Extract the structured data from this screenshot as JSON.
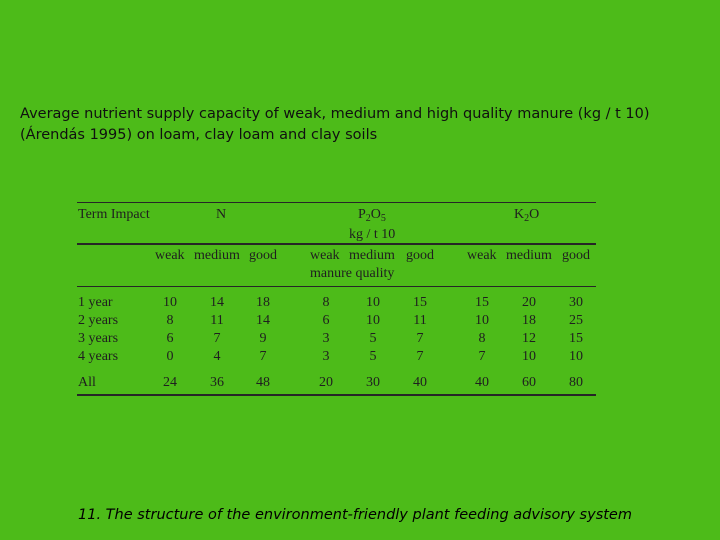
{
  "caption": {
    "line1": "Average nutrient supply capacity of weak, medium and high quality manure (kg / t 10)",
    "line2": "(Árendás 1995) on  loam, clay loam and clay soils"
  },
  "table": {
    "header": {
      "term_impact": "Term Impact",
      "n": "N",
      "p_main": "P",
      "p_sub1": "2",
      "p_o": "O",
      "p_sub2": "5",
      "unit": "kg / t 10",
      "k_main": "K",
      "k_sub": "2",
      "k_o": "O",
      "manure_quality": "manure quality",
      "quality_labels": [
        "weak",
        "medium",
        "good",
        "weak",
        "medium",
        "good",
        "weak",
        "medium",
        "good"
      ]
    },
    "rows": [
      {
        "label": "1 year",
        "values": [
          "10",
          "14",
          "18",
          "8",
          "10",
          "15",
          "15",
          "20",
          "30"
        ]
      },
      {
        "label": "2 years",
        "values": [
          "8",
          "11",
          "14",
          "6",
          "10",
          "11",
          "10",
          "18",
          "25"
        ]
      },
      {
        "label": "3 years",
        "values": [
          "6",
          "7",
          "9",
          "3",
          "5",
          "7",
          "8",
          "12",
          "15"
        ]
      },
      {
        "label": "4 years",
        "values": [
          "0",
          "4",
          "7",
          "3",
          "5",
          "7",
          "7",
          "10",
          "10"
        ]
      }
    ],
    "total": {
      "label": "All",
      "values": [
        "24",
        "36",
        "48",
        "20",
        "30",
        "40",
        "40",
        "60",
        "80"
      ]
    }
  },
  "footer": "11. The structure of the environment-friendly plant feeding advisory system"
}
